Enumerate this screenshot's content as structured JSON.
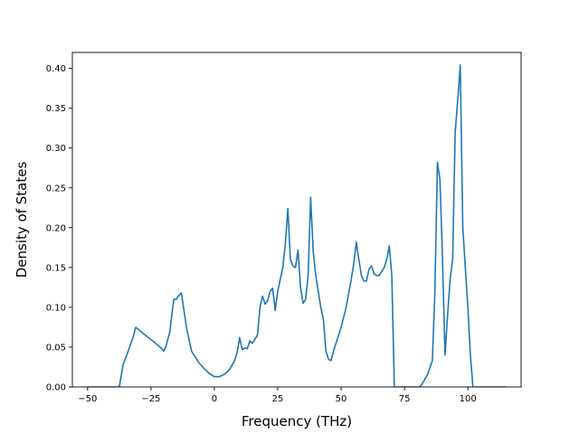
{
  "chart_data": {
    "type": "line",
    "title": "",
    "xlabel": "Frequency (THz)",
    "ylabel": "Density of States",
    "xlim": [
      -56,
      121
    ],
    "ylim": [
      0,
      0.42
    ],
    "xticks": [
      -50,
      -25,
      0,
      25,
      50,
      75,
      100
    ],
    "xtick_labels": [
      "−50",
      "−25",
      "0",
      "25",
      "50",
      "75",
      "100"
    ],
    "yticks": [
      0.0,
      0.05,
      0.1,
      0.15,
      0.2,
      0.25,
      0.3,
      0.35,
      0.4
    ],
    "ytick_labels": [
      "0.00",
      "0.05",
      "0.10",
      "0.15",
      "0.20",
      "0.25",
      "0.30",
      "0.35",
      "0.40"
    ],
    "grid": false,
    "series": [
      {
        "color": "#1f77b4",
        "x": [
          -50,
          -45,
          -40,
          -37.5,
          -36,
          -34,
          -32,
          -31,
          -28,
          -24,
          -21,
          -20,
          -19,
          -17.5,
          -17,
          -16,
          -15,
          -14.5,
          -13,
          -11,
          -9,
          -6,
          -4,
          -2,
          0,
          2,
          4,
          6,
          8,
          9,
          10,
          11,
          12,
          13,
          14,
          15,
          16,
          17,
          18,
          19,
          20,
          21,
          22,
          23,
          24,
          25,
          26,
          27,
          28,
          29,
          30,
          31,
          32,
          33,
          34,
          35,
          36,
          37,
          38,
          39,
          40,
          41,
          42,
          43,
          44,
          45,
          46,
          47,
          48,
          50,
          52,
          54,
          55,
          56,
          57,
          58,
          59,
          60,
          61,
          62,
          63,
          64,
          65,
          66,
          67,
          68,
          69,
          70,
          71,
          72,
          75,
          78,
          81,
          82,
          84,
          86,
          87,
          88,
          89,
          90,
          91,
          92,
          93,
          94,
          95,
          96,
          97,
          98,
          99,
          100,
          101,
          102,
          103,
          110,
          115
        ],
        "y": [
          0.0,
          0.0,
          0.0,
          0.0,
          0.028,
          0.045,
          0.063,
          0.075,
          0.067,
          0.057,
          0.049,
          0.045,
          0.052,
          0.07,
          0.085,
          0.11,
          0.11,
          0.113,
          0.118,
          0.075,
          0.045,
          0.03,
          0.023,
          0.017,
          0.013,
          0.013,
          0.016,
          0.022,
          0.033,
          0.044,
          0.062,
          0.047,
          0.049,
          0.048,
          0.058,
          0.055,
          0.06,
          0.065,
          0.1,
          0.114,
          0.104,
          0.108,
          0.12,
          0.124,
          0.096,
          0.12,
          0.135,
          0.15,
          0.18,
          0.224,
          0.16,
          0.152,
          0.15,
          0.172,
          0.125,
          0.105,
          0.11,
          0.14,
          0.238,
          0.17,
          0.14,
          0.12,
          0.1,
          0.085,
          0.045,
          0.035,
          0.033,
          0.045,
          0.055,
          0.075,
          0.1,
          0.135,
          0.155,
          0.182,
          0.16,
          0.14,
          0.133,
          0.133,
          0.148,
          0.152,
          0.142,
          0.14,
          0.14,
          0.145,
          0.15,
          0.16,
          0.177,
          0.14,
          0.0,
          0.0,
          0.0,
          0.0,
          0.0,
          0.004,
          0.015,
          0.033,
          0.12,
          0.282,
          0.26,
          0.16,
          0.04,
          0.09,
          0.135,
          0.16,
          0.32,
          0.36,
          0.404,
          0.2,
          0.15,
          0.1,
          0.04,
          0.0,
          0.0,
          0.0,
          0.0
        ]
      }
    ]
  }
}
